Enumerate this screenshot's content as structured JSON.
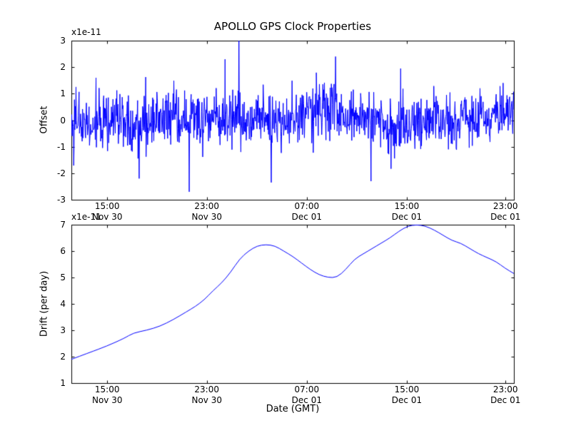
{
  "figure": {
    "title": "APOLLO GPS Clock Properties",
    "xlabel": "Date (GMT)",
    "background": "#ffffff",
    "line_color": "#0000ff",
    "axis_color": "#000000",
    "xticks": [
      {
        "frac": 0.081,
        "time": "15:00",
        "date": "Nov 30"
      },
      {
        "frac": 0.306,
        "time": "23:00",
        "date": "Nov 30"
      },
      {
        "frac": 0.532,
        "time": "07:00",
        "date": "Dec 01"
      },
      {
        "frac": 0.758,
        "time": "15:00",
        "date": "Dec 01"
      },
      {
        "frac": 0.981,
        "time": "23:00",
        "date": "Dec 01"
      }
    ]
  },
  "chart_data": [
    {
      "type": "line",
      "name": "offset-vs-time",
      "title": "APOLLO GPS Clock Properties",
      "ylabel": "Offset",
      "offset_text": "x1e-11",
      "units_multiplier": "1e-11",
      "ylim": [
        -3,
        3
      ],
      "yticks": [
        3,
        2,
        1,
        0,
        -1,
        -2,
        -3
      ],
      "x_domain": [
        0,
        1
      ],
      "grid": false,
      "legend": "none",
      "series_description": "dense noisy clock offset trace, zero-mean, mostly within -2 to +1.5, occasional spikes",
      "generator": {
        "seed": 42,
        "n": 1150,
        "std": 0.52,
        "tail_prob": 0.02,
        "tail_gain": 1.8,
        "baseline": [
          [
            0.0,
            0.0
          ],
          [
            0.05,
            -0.05
          ],
          [
            0.1,
            0.0
          ],
          [
            0.15,
            -0.1
          ],
          [
            0.2,
            0.05
          ],
          [
            0.25,
            -0.05
          ],
          [
            0.3,
            0.0
          ],
          [
            0.35,
            0.05
          ],
          [
            0.4,
            -0.1
          ],
          [
            0.45,
            -0.05
          ],
          [
            0.5,
            0.0
          ],
          [
            0.54,
            0.35
          ],
          [
            0.58,
            0.45
          ],
          [
            0.62,
            0.1
          ],
          [
            0.66,
            -0.1
          ],
          [
            0.7,
            0.1
          ],
          [
            0.73,
            -0.3
          ],
          [
            0.76,
            -0.45
          ],
          [
            0.79,
            0.1
          ],
          [
            0.83,
            0.15
          ],
          [
            0.86,
            -0.2
          ],
          [
            0.9,
            0.15
          ],
          [
            0.94,
            0.0
          ],
          [
            1.0,
            0.3
          ]
        ],
        "spikes": [
          [
            0.379,
            3.3
          ],
          [
            0.383,
            -1.2
          ],
          [
            0.347,
            2.3
          ],
          [
            0.597,
            2.4
          ],
          [
            0.266,
            -2.7
          ],
          [
            0.452,
            -2.35
          ],
          [
            0.153,
            -2.2
          ],
          [
            0.677,
            -2.3
          ],
          [
            0.056,
            1.6
          ],
          [
            0.744,
            1.95
          ]
        ]
      }
    },
    {
      "type": "line",
      "name": "drift-vs-time",
      "ylabel": "Drift (per day)",
      "offset_text": "x1e-11",
      "units_multiplier": "1e-11",
      "ylim": [
        1,
        7
      ],
      "yticks": [
        7,
        6,
        5,
        4,
        3,
        2,
        1
      ],
      "x_domain": [
        0,
        1
      ],
      "grid": false,
      "legend": "none",
      "points": [
        [
          0.0,
          1.9
        ],
        [
          0.04,
          2.15
        ],
        [
          0.08,
          2.4
        ],
        [
          0.12,
          2.7
        ],
        [
          0.14,
          2.9
        ],
        [
          0.17,
          3.0
        ],
        [
          0.2,
          3.15
        ],
        [
          0.23,
          3.4
        ],
        [
          0.26,
          3.7
        ],
        [
          0.28,
          3.9
        ],
        [
          0.3,
          4.15
        ],
        [
          0.32,
          4.5
        ],
        [
          0.34,
          4.8
        ],
        [
          0.36,
          5.2
        ],
        [
          0.38,
          5.7
        ],
        [
          0.4,
          6.0
        ],
        [
          0.42,
          6.2
        ],
        [
          0.44,
          6.25
        ],
        [
          0.46,
          6.2
        ],
        [
          0.48,
          6.0
        ],
        [
          0.5,
          5.8
        ],
        [
          0.52,
          5.55
        ],
        [
          0.54,
          5.3
        ],
        [
          0.56,
          5.1
        ],
        [
          0.58,
          5.0
        ],
        [
          0.6,
          5.0
        ],
        [
          0.62,
          5.3
        ],
        [
          0.64,
          5.7
        ],
        [
          0.66,
          5.9
        ],
        [
          0.68,
          6.1
        ],
        [
          0.7,
          6.3
        ],
        [
          0.72,
          6.5
        ],
        [
          0.74,
          6.75
        ],
        [
          0.76,
          6.95
        ],
        [
          0.78,
          7.0
        ],
        [
          0.8,
          6.95
        ],
        [
          0.82,
          6.8
        ],
        [
          0.84,
          6.6
        ],
        [
          0.86,
          6.4
        ],
        [
          0.88,
          6.3
        ],
        [
          0.9,
          6.1
        ],
        [
          0.92,
          5.9
        ],
        [
          0.94,
          5.75
        ],
        [
          0.96,
          5.6
        ],
        [
          0.98,
          5.35
        ],
        [
          1.0,
          5.15
        ]
      ]
    }
  ]
}
